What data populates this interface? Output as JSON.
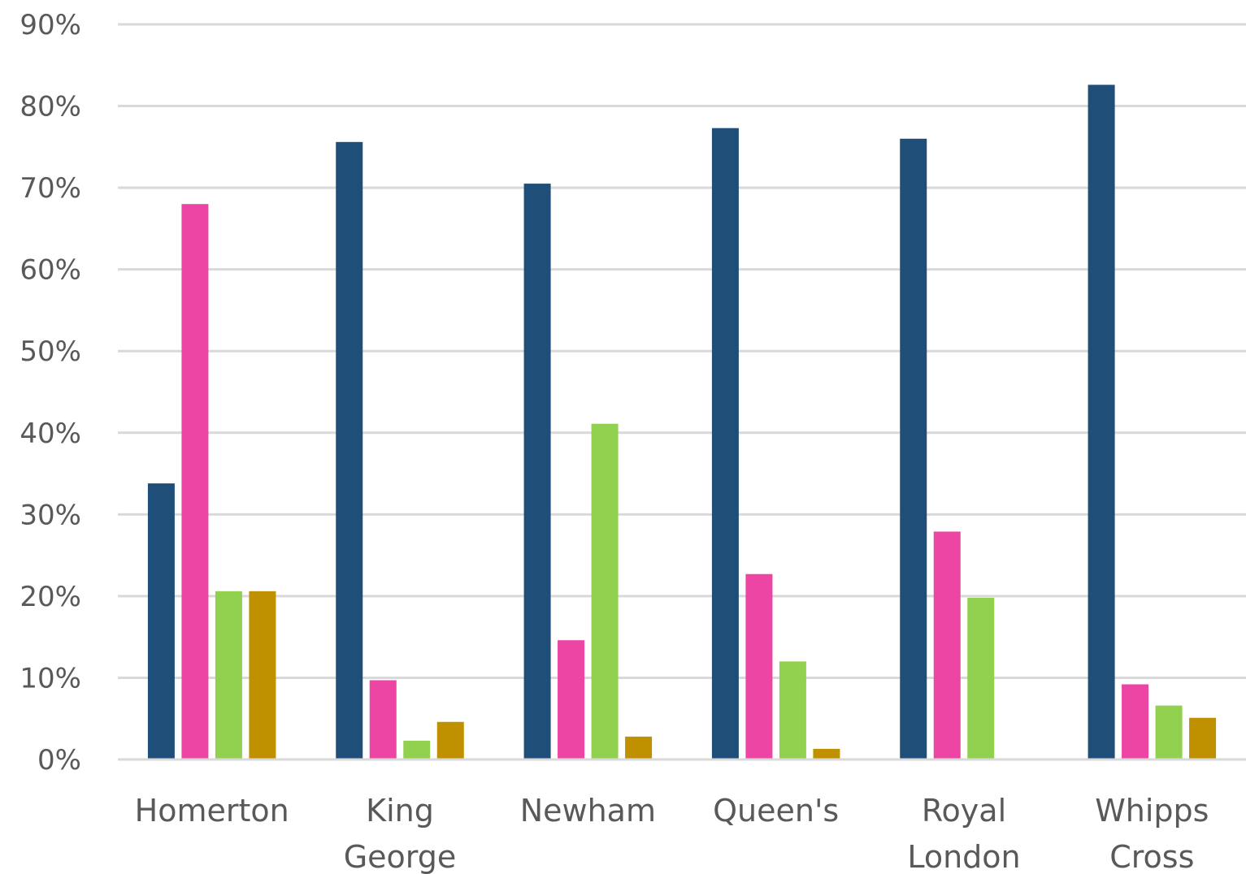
{
  "chart_data": {
    "type": "bar",
    "categories": [
      [
        "Homerton"
      ],
      [
        "King",
        "George"
      ],
      [
        "Newham"
      ],
      [
        "Queen's"
      ],
      [
        "Royal",
        "London"
      ],
      [
        "Whipps",
        "Cross"
      ]
    ],
    "series": [
      {
        "color": "#1f4e79",
        "values": [
          33.8,
          75.6,
          70.5,
          77.3,
          76.0,
          82.6
        ]
      },
      {
        "color": "#ec45a4",
        "values": [
          68.0,
          9.7,
          14.6,
          22.7,
          27.9,
          9.2
        ]
      },
      {
        "color": "#92d050",
        "values": [
          20.6,
          2.3,
          41.1,
          12.0,
          19.8,
          6.6
        ]
      },
      {
        "color": "#bf9000",
        "values": [
          20.6,
          4.6,
          2.8,
          1.3,
          0,
          5.1
        ]
      }
    ],
    "ylim": [
      0,
      90
    ],
    "yticks": [
      "0%",
      "10%",
      "20%",
      "30%",
      "40%",
      "50%",
      "60%",
      "70%",
      "80%",
      "90%"
    ],
    "grid": true,
    "legend": "none"
  }
}
